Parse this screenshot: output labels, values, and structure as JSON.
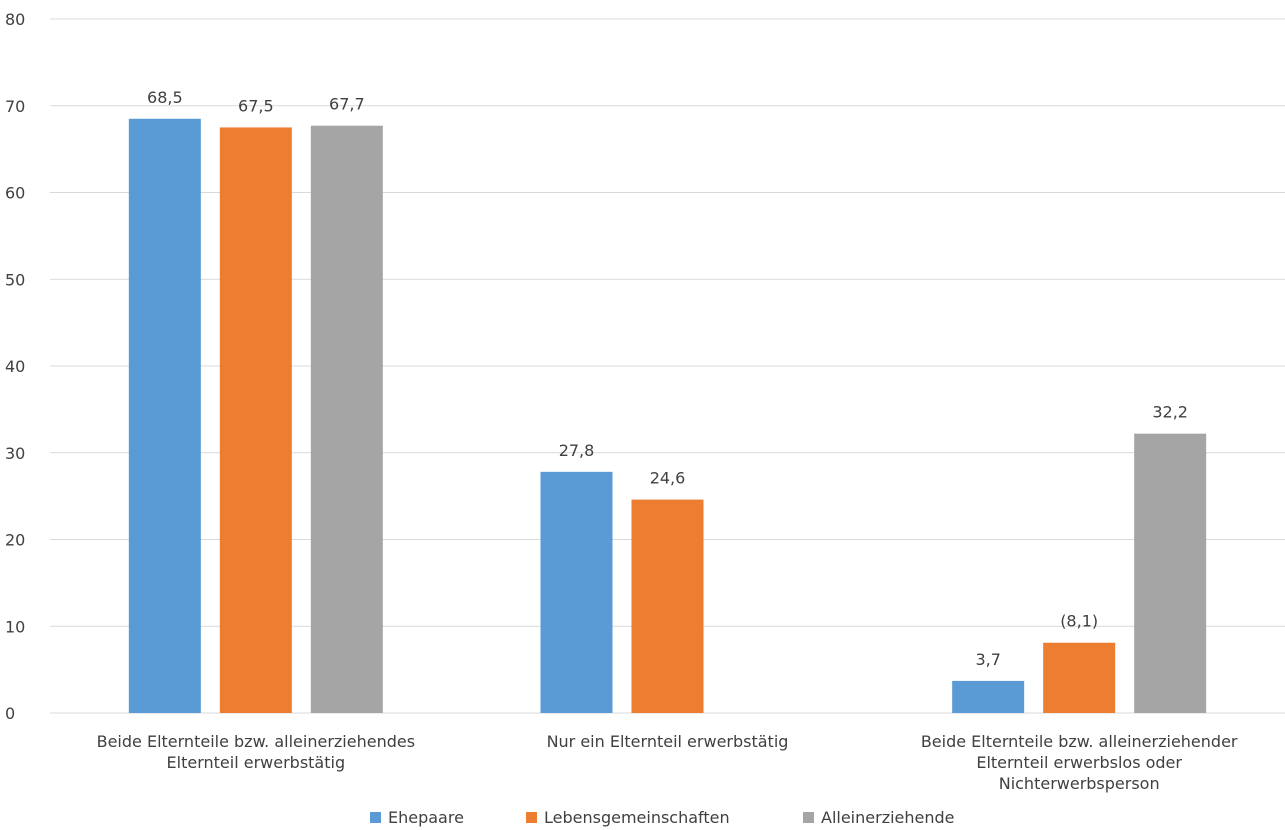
{
  "chart_data": {
    "type": "bar",
    "categories": [
      [
        "Beide Elternteile bzw. alleinerziehendes",
        "Elternteil erwerbstätig"
      ],
      [
        "Nur ein Elternteil erwerbstätig"
      ],
      [
        "Beide Elternteile bzw. alleinerziehender",
        "Elternteil erwerbslos oder",
        "Nichterwerbsperson"
      ]
    ],
    "series": [
      {
        "name": "Ehepaare",
        "color": "#5b9bd5",
        "values": [
          68.5,
          27.8,
          3.7
        ],
        "labels": [
          "68,5",
          "27,8",
          "3,7"
        ]
      },
      {
        "name": "Lebensgemeinschaften",
        "color": "#ed7d31",
        "values": [
          67.5,
          24.6,
          8.1
        ],
        "labels": [
          "67,5",
          "24,6",
          "(8,1)"
        ]
      },
      {
        "name": "Alleinerziehende",
        "color": "#a5a5a5",
        "values": [
          67.7,
          null,
          32.2
        ],
        "labels": [
          "67,7",
          "",
          "32,2"
        ]
      }
    ],
    "ylim": [
      0,
      80
    ],
    "yticks": [
      0,
      10,
      20,
      30,
      40,
      50,
      60,
      70,
      80
    ],
    "grid": true,
    "legend": "bottom",
    "title": "",
    "xlabel": "",
    "ylabel": ""
  }
}
